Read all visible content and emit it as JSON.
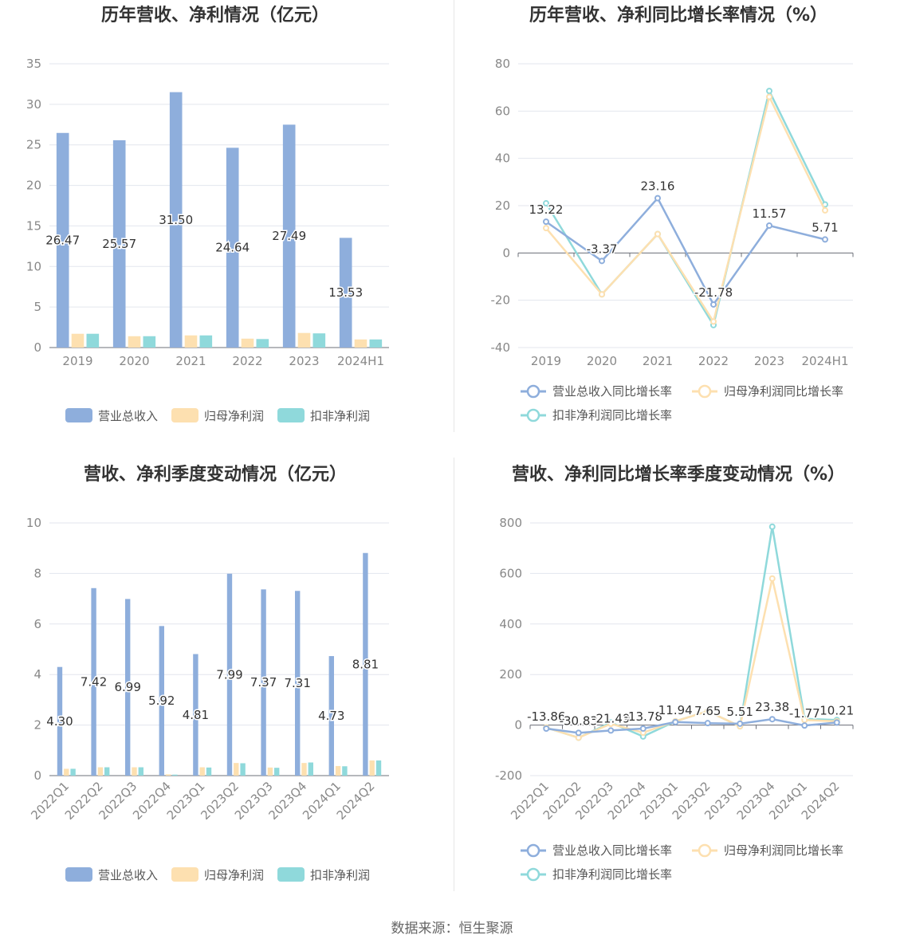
{
  "source": "数据来源：恒生聚源",
  "colors": {
    "revenue": "#8eaedc",
    "parent_profit": "#fde0b0",
    "deducted_profit": "#8fd9db"
  },
  "chart_data": [
    {
      "id": "annual_amounts",
      "type": "bar",
      "title": "历年营收、净利情况（亿元）",
      "categories": [
        "2019",
        "2020",
        "2021",
        "2022",
        "2023",
        "2024H1"
      ],
      "ylim": [
        0,
        35
      ],
      "yticks": [
        0,
        5,
        10,
        15,
        20,
        25,
        30,
        35
      ],
      "grid": true,
      "legend": "bottom",
      "series": [
        {
          "name": "营业总收入",
          "color": "#8eaedc",
          "values": [
            26.47,
            25.57,
            31.5,
            24.64,
            27.49,
            13.53
          ],
          "labels": [
            "26.47",
            "25.57",
            "31.50",
            "24.64",
            "27.49",
            "13.53"
          ]
        },
        {
          "name": "归母净利润",
          "color": "#fde0b0",
          "values": [
            1.7,
            1.4,
            1.5,
            1.1,
            1.8,
            1.0
          ]
        },
        {
          "name": "扣非净利润",
          "color": "#8fd9db",
          "values": [
            1.7,
            1.4,
            1.5,
            1.05,
            1.75,
            1.0
          ]
        }
      ]
    },
    {
      "id": "annual_growth",
      "type": "line",
      "title": "历年营收、净利同比增长率情况（%）",
      "categories": [
        "2019",
        "2020",
        "2021",
        "2022",
        "2023",
        "2024H1"
      ],
      "ylim": [
        -40,
        80
      ],
      "yticks": [
        -40,
        -20,
        0,
        20,
        40,
        60,
        80
      ],
      "grid": true,
      "legend": "bottom",
      "series": [
        {
          "name": "营业总收入同比增长率",
          "color": "#8eaedc",
          "values": [
            13.22,
            -3.37,
            23.16,
            -21.78,
            11.57,
            5.71
          ],
          "labels": [
            "13.22",
            "-3.37",
            "23.16",
            "-21.78",
            "11.57",
            "5.71"
          ]
        },
        {
          "name": "归母净利润同比增长率",
          "color": "#fde0b0",
          "values": [
            10.5,
            -17.5,
            8.0,
            -29.0,
            66.0,
            18.0
          ]
        },
        {
          "name": "扣非净利润同比增长率",
          "color": "#8fd9db",
          "values": [
            21.0,
            -17.5,
            8.0,
            -30.5,
            68.5,
            20.5
          ]
        }
      ]
    },
    {
      "id": "quarterly_amounts",
      "type": "bar",
      "title": "营收、净利季度变动情况（亿元）",
      "categories": [
        "2022Q1",
        "2022Q2",
        "2022Q3",
        "2022Q4",
        "2023Q1",
        "2023Q2",
        "2023Q3",
        "2023Q4",
        "2024Q1",
        "2024Q2"
      ],
      "ylim": [
        0,
        10
      ],
      "yticks": [
        0,
        2,
        4,
        6,
        8,
        10
      ],
      "grid": true,
      "legend": "bottom",
      "series": [
        {
          "name": "营业总收入",
          "color": "#8eaedc",
          "values": [
            4.3,
            7.42,
            6.99,
            5.92,
            4.81,
            7.99,
            7.37,
            7.31,
            4.73,
            8.81
          ],
          "labels": [
            "4.30",
            "7.42",
            "6.99",
            "5.92",
            "4.81",
            "7.99",
            "7.37",
            "7.31",
            "4.73",
            "8.81"
          ]
        },
        {
          "name": "归母净利润",
          "color": "#fde0b0",
          "values": [
            0.27,
            0.33,
            0.33,
            0.05,
            0.33,
            0.5,
            0.32,
            0.5,
            0.38,
            0.6
          ]
        },
        {
          "name": "扣非净利润",
          "color": "#8fd9db",
          "values": [
            0.27,
            0.33,
            0.33,
            0.04,
            0.32,
            0.49,
            0.31,
            0.52,
            0.37,
            0.6
          ]
        }
      ]
    },
    {
      "id": "quarterly_growth",
      "type": "line",
      "title": "营收、净利同比增长率季度变动情况（%）",
      "categories": [
        "2022Q1",
        "2022Q2",
        "2022Q3",
        "2022Q4",
        "2023Q1",
        "2023Q2",
        "2023Q3",
        "2023Q4",
        "2024Q1",
        "2024Q2"
      ],
      "ylim": [
        -200,
        800
      ],
      "yticks": [
        -200,
        0,
        200,
        400,
        600,
        800
      ],
      "grid": true,
      "legend": "bottom",
      "series": [
        {
          "name": "营业总收入同比增长率",
          "color": "#8eaedc",
          "values": [
            -13.86,
            -30.83,
            -21.49,
            -13.78,
            11.94,
            7.65,
            5.51,
            23.38,
            -1.77,
            10.21
          ],
          "labels": [
            "-13.86",
            "-30.83",
            "-21.49",
            "-13.78",
            "11.94",
            "7.65",
            "5.51",
            "23.38",
            "-1.77",
            "10.21"
          ]
        },
        {
          "name": "归母净利润同比增长率",
          "color": "#fde0b0",
          "values": [
            -10,
            -50,
            5,
            -30,
            15,
            55,
            -5,
            580,
            20,
            15
          ]
        },
        {
          "name": "扣非净利润同比增长率",
          "color": "#8fd9db",
          "values": [
            -10,
            -50,
            10,
            -45,
            15,
            55,
            -5,
            785,
            25,
            20
          ]
        }
      ]
    }
  ]
}
